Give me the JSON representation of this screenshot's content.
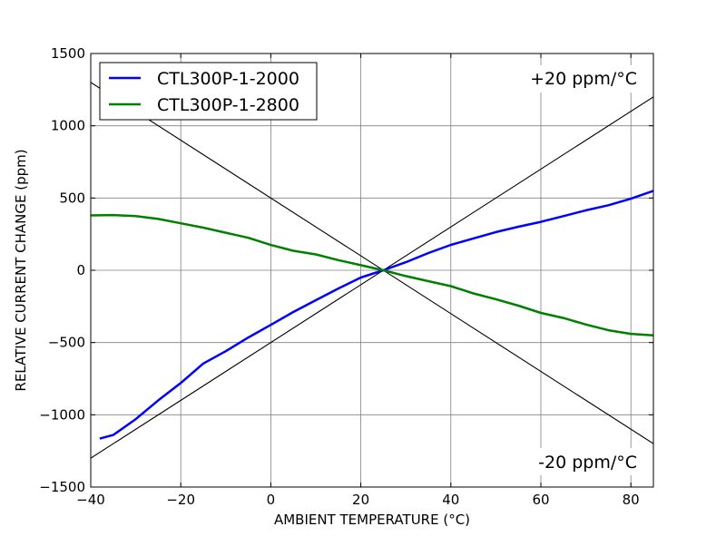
{
  "chart_data": {
    "type": "line",
    "title": "",
    "xlabel": "AMBIENT TEMPERATURE (°C)",
    "ylabel": "RELATIVE CURRENT CHANGE (ppm)",
    "xlim": [
      -40,
      85
    ],
    "ylim": [
      -1500,
      1500
    ],
    "xticks": [
      -40,
      -20,
      0,
      20,
      40,
      60,
      80
    ],
    "xtick_labels": [
      "−40",
      "−20",
      "0",
      "20",
      "40",
      "60",
      "80"
    ],
    "yticks": [
      -1500,
      -1000,
      -500,
      0,
      500,
      1000,
      1500
    ],
    "ytick_labels": [
      "−1500",
      "−1000",
      "−500",
      "0",
      "500",
      "1000",
      "1500"
    ],
    "grid": true,
    "legend_position": "top-left",
    "series": [
      {
        "name": "CTL300P-1-2000",
        "color": "#0000ff",
        "x": [
          -38,
          -35,
          -30,
          -25,
          -20,
          -15,
          -10,
          -5,
          0,
          5,
          10,
          15,
          20,
          25,
          30,
          35,
          40,
          45,
          50,
          55,
          60,
          65,
          70,
          75,
          80,
          85
        ],
        "y": [
          -1165,
          -1140,
          -1030,
          -900,
          -780,
          -645,
          -560,
          -465,
          -378,
          -289,
          -207,
          -126,
          -50,
          0,
          56,
          119,
          176,
          220,
          264,
          301,
          335,
          375,
          415,
          450,
          495,
          550
        ]
      },
      {
        "name": "CTL300P-1-2800",
        "color": "#008000",
        "x": [
          -40,
          -35,
          -30,
          -25,
          -20,
          -15,
          -10,
          -5,
          0,
          5,
          10,
          15,
          20,
          25,
          30,
          35,
          40,
          45,
          50,
          55,
          60,
          65,
          70,
          75,
          80,
          85
        ],
        "y": [
          380,
          382,
          375,
          355,
          325,
          295,
          260,
          225,
          175,
          135,
          110,
          70,
          35,
          0,
          -40,
          -75,
          -110,
          -160,
          -200,
          -245,
          -295,
          -330,
          -375,
          -415,
          -440,
          -450
        ]
      }
    ],
    "reference_lines": [
      {
        "label": "+20 ppm/°C",
        "slope": 20,
        "x0": 25,
        "color": "#000000"
      },
      {
        "label": "-20 ppm/°C",
        "slope": -20,
        "x0": 25,
        "color": "#000000"
      }
    ]
  }
}
